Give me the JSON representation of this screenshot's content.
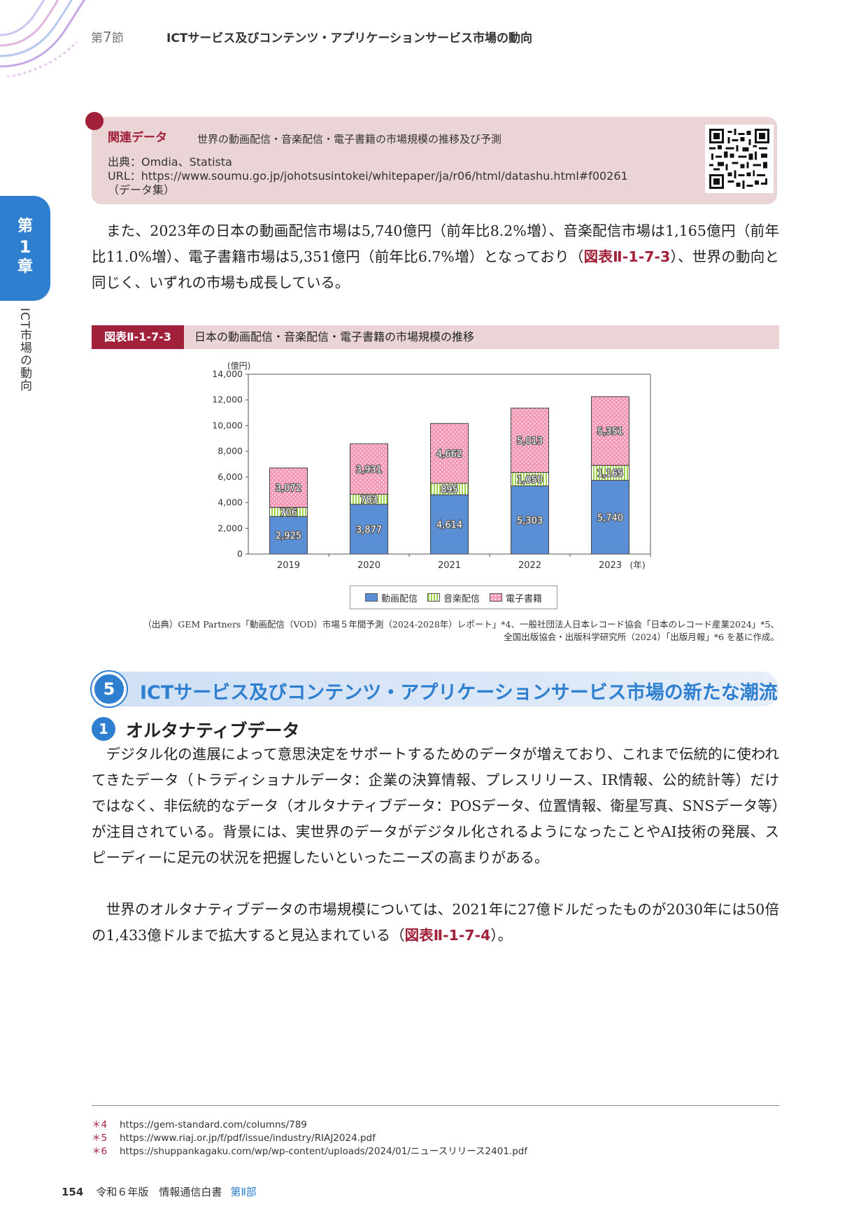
{
  "header": {
    "section_prefix": "第",
    "section_num": "7",
    "section_suffix": "節",
    "title": "ICTサービス及びコンテンツ・アプリケーションサービス市場の動向"
  },
  "chapter_tab": {
    "c1": "第",
    "c2": "1",
    "c3": "章"
  },
  "side_text": "ICT市場の動向",
  "related": {
    "label": "関連データ",
    "title": "世界の動画配信・音楽配信・電子書籍の市場規模の推移及び予測",
    "source": "出典：Omdia、Statista",
    "url": "URL：https://www.soumu.go.jp/johotsusintokei/whitepaper/ja/r06/html/datashu.html#f00261",
    "note": "（データ集）"
  },
  "para1": {
    "text": "また、2023年の日本の動画配信市場は5,740億円（前年比8.2%増）、音楽配信市場は1,165億円（前年比11.0%増）、電子書籍市場は5,351億円（前年比6.7%増）となっており（",
    "ref": "図表Ⅱ-1-7-3",
    "tail": "）、世界の動向と同じく、いずれの市場も成長している。"
  },
  "figure": {
    "tag": "図表Ⅱ-1-7-3",
    "title": "日本の動画配信・音楽配信・電子書籍の市場規模の推移"
  },
  "chart_data": {
    "type": "bar",
    "stacked": true,
    "categories": [
      "2019",
      "2020",
      "2021",
      "2022",
      "2023"
    ],
    "x_unit": "(年)",
    "ylabel": "(億円)",
    "ylim": [
      0,
      14000
    ],
    "yticks": [
      "0",
      "2,000",
      "4,000",
      "6,000",
      "8,000",
      "10,000",
      "12,000",
      "14,000"
    ],
    "series": [
      {
        "name": "動画配信",
        "values": [
          2925,
          3877,
          4614,
          5303,
          5740
        ],
        "labels": [
          "2,925",
          "3,877",
          "4,614",
          "5,303",
          "5,740"
        ],
        "color": "#5a8fd6"
      },
      {
        "name": "音楽配信",
        "values": [
          706,
          783,
          895,
          1050,
          1165
        ],
        "labels": [
          "706",
          "783",
          "895",
          "1,050",
          "1,165"
        ],
        "color": "#9dd24a"
      },
      {
        "name": "電子書籍",
        "values": [
          3072,
          3931,
          4662,
          5013,
          5351
        ],
        "labels": [
          "3,072",
          "3,931",
          "4,662",
          "5,013",
          "5,351"
        ],
        "color": "#f49ab6"
      }
    ],
    "grid": false,
    "legend_position": "bottom"
  },
  "source": {
    "line1": "（出典）GEM Partners「動画配信（VOD）市場５年間予測（2024-2028年）レポート」*4、一般社団法人日本レコード協会「日本のレコード産業2024」*5、",
    "line2": "全国出版協会・出版科学研究所（2024）「出版月報」*6 を基に作成。"
  },
  "section5": {
    "num": "5",
    "title": "ICTサービス及びコンテンツ・アプリケーションサービス市場の新たな潮流"
  },
  "sub1": {
    "num": "1",
    "title": "オルタナティブデータ"
  },
  "para2": "デジタル化の進展によって意思決定をサポートするためのデータが増えており、これまで伝統的に使われてきたデータ（トラディショナルデータ：企業の決算情報、プレスリリース、IR情報、公的統計等）だけではなく、非伝統的なデータ（オルタナティブデータ：POSデータ、位置情報、衛星写真、SNSデータ等）が注目されている。背景には、実世界のデータがデジタル化されるようになったことやAI技術の発展、スピーディーに足元の状況を把握したいといったニーズの高まりがある。",
  "para3": {
    "text": "世界のオルタナティブデータの市場規模については、2021年に27億ドルだったものが2030年には50倍の1,433億ドルまで拡大すると見込まれている（",
    "ref": "図表Ⅱ-1-7-4",
    "tail": "）。"
  },
  "footnotes": [
    {
      "mark": "＊4",
      "text": "https://gem-standard.com/columns/789"
    },
    {
      "mark": "＊5",
      "text": "https://www.riaj.or.jp/f/pdf/issue/industry/RIAJ2024.pdf"
    },
    {
      "mark": "＊6",
      "text": "https://shuppankagaku.com/wp/wp-content/uploads/2024/01/ニュースリリース2401.pdf"
    }
  ],
  "footer": {
    "page": "154",
    "book": "令和６年版　情報通信白書",
    "part": "第Ⅱ部"
  }
}
